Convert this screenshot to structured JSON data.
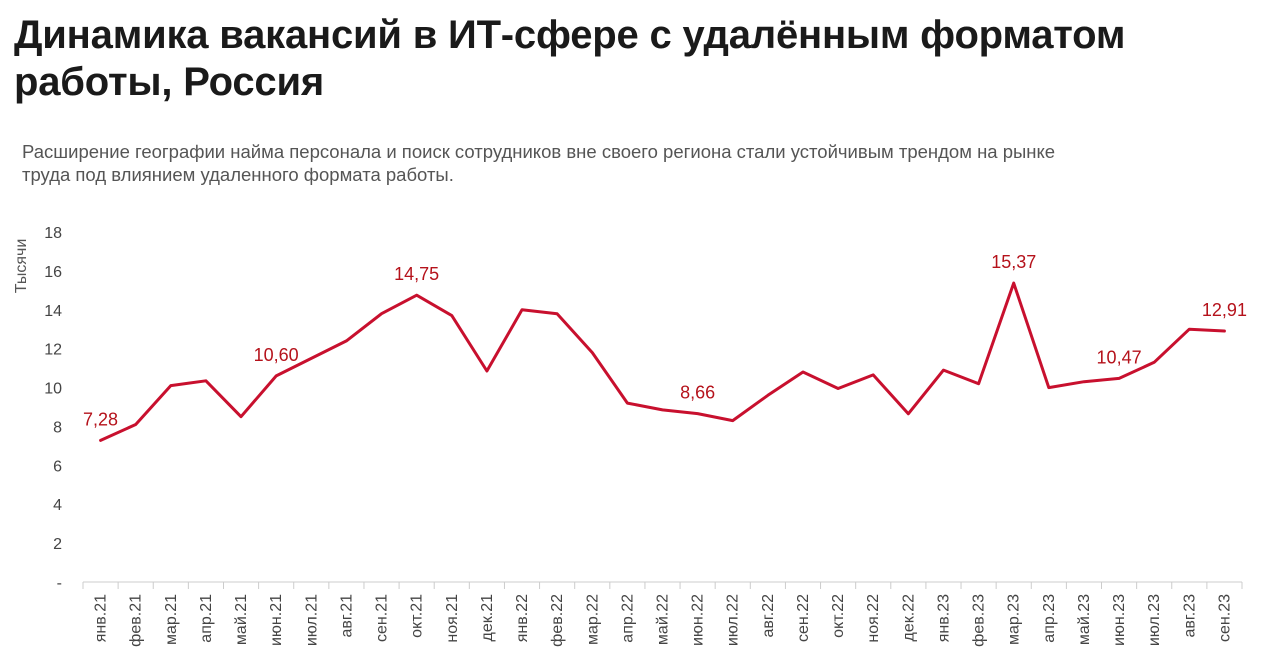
{
  "header": {
    "title": "Динамика вакансий в ИТ-сфере с удалённым форматом работы, Россия",
    "subtitle": "Расширение географии найма персонала и поиск сотрудников вне своего региона стали устойчивым трендом на рынке труда под влиянием удаленного формата работы."
  },
  "chart_data": {
    "type": "line",
    "title": "Динамика вакансий в ИТ-сфере с удалённым форматом работы, Россия",
    "subtitle": "Расширение географии найма персонала и поиск сотрудников вне своего региона стали устойчивым трендом на рынке труда под влиянием удаленного формата работы.",
    "ylabel": "Тысячи",
    "xlabel": "",
    "ylim": [
      0,
      18
    ],
    "yticks": [
      "-",
      "2",
      "4",
      "6",
      "8",
      "10",
      "12",
      "14",
      "16",
      "18"
    ],
    "categories": [
      "янв.21",
      "фев.21",
      "мар.21",
      "апр.21",
      "май.21",
      "июн.21",
      "июл.21",
      "авг.21",
      "сен.21",
      "окт.21",
      "ноя.21",
      "дек.21",
      "янв.22",
      "фев.22",
      "мар.22",
      "апр.22",
      "май.22",
      "июн.22",
      "июл.22",
      "авг.22",
      "сен.22",
      "окт.22",
      "ноя.22",
      "дек.22",
      "янв.23",
      "фев.23",
      "мар.23",
      "апр.23",
      "май.23",
      "июн.23",
      "июл.23",
      "авг.23",
      "сен.23"
    ],
    "values": [
      7.28,
      8.1,
      10.1,
      10.35,
      8.5,
      10.6,
      11.5,
      12.4,
      13.8,
      14.75,
      13.7,
      10.85,
      14.0,
      13.8,
      11.8,
      9.2,
      8.85,
      8.66,
      8.3,
      9.6,
      10.8,
      9.95,
      10.65,
      8.65,
      10.9,
      10.2,
      15.37,
      10.0,
      10.3,
      10.47,
      11.3,
      13.0,
      12.91
    ],
    "annotations": [
      {
        "index": 0,
        "text": "7,28"
      },
      {
        "index": 5,
        "text": "10,60"
      },
      {
        "index": 9,
        "text": "14,75"
      },
      {
        "index": 17,
        "text": "8,66"
      },
      {
        "index": 26,
        "text": "15,37"
      },
      {
        "index": 29,
        "text": "10,47"
      },
      {
        "index": 32,
        "text": "12,91"
      }
    ],
    "grid": false,
    "legend": "none",
    "colors": {
      "line": "#c8102e",
      "label": "#b5121b",
      "axis": "#cccccc",
      "text": "#444444"
    }
  }
}
